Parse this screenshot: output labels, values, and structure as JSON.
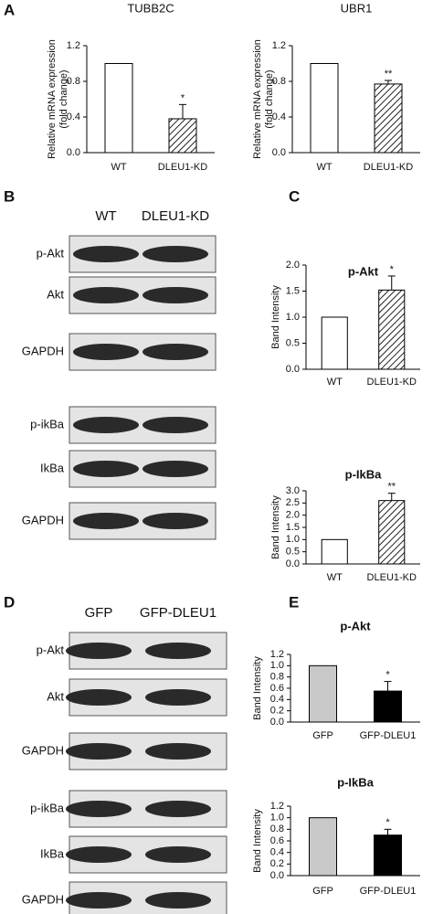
{
  "panel_labels": [
    "A",
    "B",
    "C",
    "D",
    "E"
  ],
  "blots": [
    {
      "column_labels": [
        "WT",
        "DLEU1-KD"
      ],
      "rows": [
        "p-Akt",
        "Akt",
        "GAPDH",
        "p-ikBa",
        "IkBa",
        "GAPDH"
      ]
    },
    {
      "column_labels": [
        "GFP",
        "GFP-DLEU1"
      ],
      "rows": [
        "p-Akt",
        "Akt",
        "GAPDH",
        "p-ikBa",
        "IkBa",
        "GAPDH"
      ]
    }
  ],
  "chart_data": [
    {
      "type": "bar",
      "title": "TUBB2C",
      "y_label": [
        "Relative mRNA expression",
        "(fold change)"
      ],
      "categories": [
        "WT",
        "DLEU1-KD"
      ],
      "values": [
        1.0,
        0.38
      ],
      "errors": [
        null,
        0.16
      ],
      "significance": [
        null,
        "*"
      ],
      "colors": [
        "#ffffff",
        "#ffffff"
      ],
      "hatched": [
        false,
        true
      ],
      "ylim": [
        0,
        1.2
      ],
      "yticks": [
        {
          "value": 0,
          "label": "0.0"
        },
        0.4,
        0.8,
        1.2
      ]
    },
    {
      "type": "bar",
      "title": "UBR1",
      "y_label": [
        "Relative mRNA expression",
        "(fold change)"
      ],
      "categories": [
        "WT",
        "DLEU1-KD"
      ],
      "values": [
        1.0,
        0.77
      ],
      "errors": [
        null,
        0.04
      ],
      "significance": [
        null,
        "**"
      ],
      "colors": [
        "#ffffff",
        "#ffffff"
      ],
      "hatched": [
        false,
        true
      ],
      "ylim": [
        0,
        1.2
      ],
      "yticks": [
        {
          "value": 0,
          "label": "0.0"
        },
        0.4,
        0.8,
        1.2
      ]
    },
    {
      "type": "bar",
      "title": "p-Akt",
      "y_label": "Band Intensity",
      "categories": [
        "WT",
        "DLEU1-KD"
      ],
      "values": [
        1.0,
        1.52
      ],
      "errors": [
        null,
        0.27
      ],
      "significance": [
        null,
        "*"
      ],
      "colors": [
        "#ffffff",
        "#ffffff"
      ],
      "hatched": [
        false,
        true
      ],
      "ylim": [
        0,
        2.0
      ],
      "yticks": [
        {
          "value": 0,
          "label": "0.0"
        },
        0.5,
        {
          "value": 1,
          "label": "1.0"
        },
        1.5,
        {
          "value": 2,
          "label": "2.0"
        }
      ]
    },
    {
      "type": "bar",
      "title": "p-IkBa",
      "y_label": "Band Intensity",
      "categories": [
        "WT",
        "DLEU1-KD"
      ],
      "values": [
        1.0,
        2.6
      ],
      "errors": [
        null,
        0.3
      ],
      "significance": [
        null,
        "**"
      ],
      "colors": [
        "#ffffff",
        "#ffffff"
      ],
      "hatched": [
        false,
        true
      ],
      "ylim": [
        0,
        3.0
      ],
      "yticks": [
        {
          "value": 0,
          "label": "0.0"
        },
        0.5,
        {
          "value": 1,
          "label": "1.0"
        },
        1.5,
        {
          "value": 2,
          "label": "2.0"
        },
        2.5,
        {
          "value": 3,
          "label": "3.0"
        }
      ]
    },
    {
      "type": "bar",
      "title": "p-Akt",
      "y_label": "Band Intensity",
      "categories": [
        "GFP",
        "GFP-DLEU1"
      ],
      "values": [
        1.0,
        0.55
      ],
      "errors": [
        null,
        0.17
      ],
      "significance": [
        null,
        "*"
      ],
      "colors": [
        "#c8c8c8",
        "#000000"
      ],
      "hatched": [
        false,
        false
      ],
      "ylim": [
        0,
        1.2
      ],
      "yticks": [
        {
          "value": 0,
          "label": "0.0"
        },
        0.2,
        0.4,
        0.6,
        0.8,
        {
          "value": 1,
          "label": "1.0"
        },
        1.2
      ]
    },
    {
      "type": "bar",
      "title": "p-IkBa",
      "y_label": "Band Intensity",
      "categories": [
        "GFP",
        "GFP-DLEU1"
      ],
      "values": [
        1.0,
        0.7
      ],
      "errors": [
        null,
        0.1
      ],
      "significance": [
        null,
        "*"
      ],
      "colors": [
        "#c8c8c8",
        "#000000"
      ],
      "hatched": [
        false,
        false
      ],
      "ylim": [
        0,
        1.2
      ],
      "yticks": [
        {
          "value": 0,
          "label": "0.0"
        },
        0.2,
        0.4,
        0.6,
        0.8,
        {
          "value": 1,
          "label": "1.0"
        },
        1.2
      ]
    }
  ]
}
